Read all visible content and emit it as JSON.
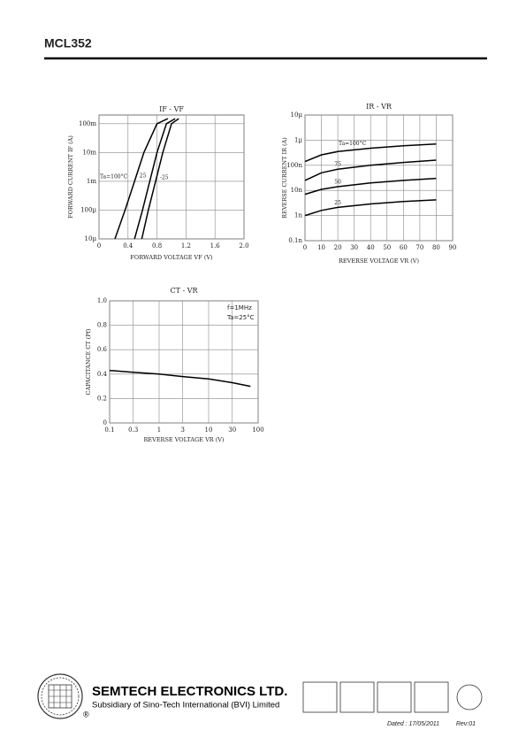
{
  "header": {
    "title": "MCL352"
  },
  "chart_data": [
    {
      "type": "line",
      "title": "IF - VF",
      "x_label": "FORWARD VOLTAGE  VF  (V)",
      "y_label": "FORWARD CURRENT   IF (A)",
      "xscale": "linear",
      "yscale": "log",
      "grid": true,
      "xlim": [
        0,
        2
      ],
      "ylim": [
        1e-05,
        0.2
      ],
      "xticks": [
        0,
        0.4,
        0.8,
        1.2,
        1.6,
        {
          "value": 2,
          "label": "2.0"
        }
      ],
      "yticks": [
        {
          "value": 1e-05,
          "label": "10µ"
        },
        {
          "value": 0.0001,
          "label": "100µ"
        },
        {
          "value": 0.001,
          "label": "1m"
        },
        {
          "value": 0.01,
          "label": "10m"
        },
        {
          "value": 0.1,
          "label": "100m"
        }
      ],
      "series": [
        {
          "name": "Ta=100°C",
          "color": "#000000",
          "x": [
            0.22,
            0.36,
            0.49,
            0.62,
            0.8,
            0.95
          ],
          "values": [
            1e-05,
            0.0001,
            0.001,
            0.01,
            0.1,
            0.15
          ]
        },
        {
          "name": "25",
          "color": "#000000",
          "x": [
            0.49,
            0.6,
            0.7,
            0.8,
            0.93,
            1.05
          ],
          "values": [
            1e-05,
            0.0001,
            0.001,
            0.01,
            0.1,
            0.15
          ]
        },
        {
          "name": "-25",
          "color": "#000000",
          "x": [
            0.59,
            0.68,
            0.78,
            0.88,
            1.0,
            1.1
          ],
          "values": [
            1e-05,
            0.0001,
            0.001,
            0.01,
            0.1,
            0.15
          ]
        }
      ]
    },
    {
      "type": "line",
      "title": "IR - VR",
      "x_label": "REVERSE VOLTAGE  VR  (V)",
      "y_label": "REVERSE CURRENT  IR (A)",
      "xscale": "linear",
      "yscale": "log",
      "grid": true,
      "xlim": [
        0,
        90
      ],
      "ylim": [
        1e-10,
        1e-05
      ],
      "xticks": [
        0,
        10,
        20,
        30,
        40,
        50,
        60,
        70,
        80,
        90
      ],
      "yticks": [
        {
          "value": 1e-10,
          "label": "0.1n"
        },
        {
          "value": 1e-09,
          "label": "1n"
        },
        {
          "value": 1e-08,
          "label": "10n"
        },
        {
          "value": 1e-07,
          "label": "100n"
        },
        {
          "value": 1e-06,
          "label": "1µ"
        },
        {
          "value": 1e-05,
          "label": "10µ"
        }
      ],
      "series": [
        {
          "name": "Ta=100°C",
          "color": "#000000",
          "x": [
            0,
            10,
            20,
            40,
            60,
            80
          ],
          "values": [
            1.4e-07,
            2.6e-07,
            3.5e-07,
            4.8e-07,
            6e-07,
            7e-07
          ]
        },
        {
          "name": "75",
          "color": "#000000",
          "x": [
            0,
            10,
            20,
            40,
            60,
            80
          ],
          "values": [
            2.5e-08,
            5e-08,
            7e-08,
            1e-07,
            1.3e-07,
            1.6e-07
          ]
        },
        {
          "name": "50",
          "color": "#000000",
          "x": [
            0,
            10,
            20,
            40,
            60,
            80
          ],
          "values": [
            7e-09,
            1.1e-08,
            1.4e-08,
            2e-08,
            2.5e-08,
            3e-08
          ]
        },
        {
          "name": "25",
          "color": "#000000",
          "x": [
            0,
            10,
            20,
            40,
            60,
            80
          ],
          "values": [
            1e-09,
            1.6e-09,
            2.1e-09,
            2.9e-09,
            3.6e-09,
            4.2e-09
          ]
        }
      ]
    },
    {
      "type": "line",
      "title": "CT - VR",
      "x_label": "REVERSE VOLTAGE  VR (V)",
      "y_label": "CAPACITANCE  CT  (Pf)",
      "xscale": "log",
      "yscale": "linear",
      "grid": true,
      "xlim": [
        0.1,
        100
      ],
      "ylim": [
        0,
        1
      ],
      "xticks": [
        0.1,
        0.3,
        1,
        3,
        10,
        30,
        100
      ],
      "yticks": [
        0,
        0.2,
        0.4,
        0.6,
        0.8,
        {
          "value": 1,
          "label": "1.0"
        }
      ],
      "annotations": [
        "f=1MHz",
        "Ta=25°C"
      ],
      "series": [
        {
          "name": "",
          "color": "#000000",
          "x": [
            0.1,
            0.3,
            1,
            3,
            10,
            30,
            70
          ],
          "values": [
            0.43,
            0.415,
            0.4,
            0.38,
            0.36,
            0.33,
            0.3
          ]
        }
      ]
    }
  ],
  "footer": {
    "company": "SEMTECH ELECTRONICS LTD.",
    "subsidiary": "Subsidiary of Sino-Tech International (BVI) Limited",
    "registered": "®",
    "date": "Dated : 17/05/2011",
    "rev": "Rev:01"
  }
}
